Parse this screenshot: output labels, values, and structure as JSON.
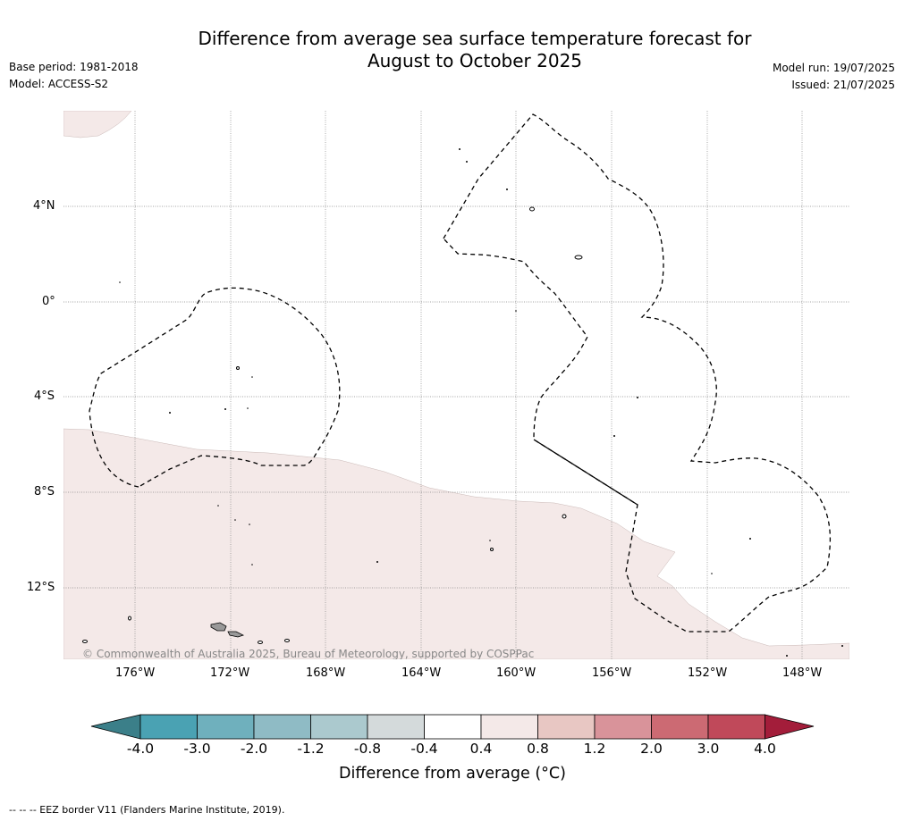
{
  "header": {
    "title_line1": "Difference from average sea surface temperature forecast for",
    "title_line2": "August to October 2025",
    "base_period": "Base period: 1981-2018",
    "model": "Model: ACCESS-S2",
    "model_run": "Model run: 19/07/2025",
    "issued": "Issued: 21/07/2025"
  },
  "map": {
    "lat_labels": [
      "4°N",
      "0°",
      "4°S",
      "8°S",
      "12°S"
    ],
    "lon_labels": [
      "176°W",
      "172°W",
      "168°W",
      "164°W",
      "160°W",
      "156°W",
      "152°W",
      "148°W"
    ],
    "copyright": "© Commonwealth of Australia 2025, Bureau of Meteorology, supported by COSPPac",
    "anomaly_fill_color": "#f4e9e8",
    "island_color": "#999999"
  },
  "colorbar": {
    "ticks": [
      "-4.0",
      "-3.0",
      "-2.0",
      "-1.2",
      "-0.8",
      "-0.4",
      "0.4",
      "0.8",
      "1.2",
      "2.0",
      "3.0",
      "4.0"
    ],
    "colors": [
      "#3b7f89",
      "#4aa2b3",
      "#6fb0bd",
      "#8fbbc5",
      "#abc9ce",
      "#d4dadb",
      "#ffffff",
      "#f4e9e8",
      "#e8c7c3",
      "#d9939a",
      "#cc6a73",
      "#c0495a",
      "#a31d3a"
    ],
    "title": "Difference from average (°C)"
  },
  "footer": {
    "legend_text": "--  --  -- EEZ border V11 (Flanders Marine Institute, 2019)."
  }
}
